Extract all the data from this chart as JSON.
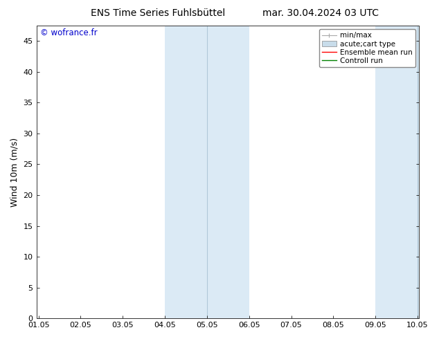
{
  "title": "ENS Time Series Fuhlsbüttel",
  "title_right": "mar. 30.04.2024 03 UTC",
  "ylabel": "Wind 10m (m/s)",
  "watermark": "© wofrance.fr",
  "watermark_color": "#0000cc",
  "background_color": "#ffffff",
  "plot_bg_color": "#ffffff",
  "shaded_bands": [
    {
      "xstart": 4.05,
      "xend": 5.05,
      "color": "#dbeaf5"
    },
    {
      "xstart": 5.05,
      "xend": 6.05,
      "color": "#dbeaf5"
    },
    {
      "xstart": 9.05,
      "xend": 10.05,
      "color": "#dbeaf5"
    },
    {
      "xstart": 10.05,
      "xend": 10.083,
      "color": "#dbeaf5"
    }
  ],
  "band_dividers": [
    5.05,
    10.05
  ],
  "x_ticks": [
    1.05,
    2.05,
    3.05,
    4.05,
    5.05,
    6.05,
    7.05,
    8.05,
    9.05,
    10.05
  ],
  "x_tick_labels": [
    "01.05",
    "02.05",
    "03.05",
    "04.05",
    "05.05",
    "06.05",
    "07.05",
    "08.05",
    "09.05",
    "10.05"
  ],
  "xlim": [
    1.0,
    10.083
  ],
  "ylim": [
    0,
    47.5
  ],
  "y_ticks": [
    0,
    5,
    10,
    15,
    20,
    25,
    30,
    35,
    40,
    45
  ],
  "legend_entries": [
    {
      "label": "min/max",
      "color": "#aaaaaa",
      "lw": 1.0
    },
    {
      "label": "acute;cart type",
      "color": "#c8dcea",
      "lw": 6
    },
    {
      "label": "Ensemble mean run",
      "color": "#ff0000",
      "lw": 1.0
    },
    {
      "label": "Controll run",
      "color": "#008000",
      "lw": 1.0
    }
  ],
  "tick_fontsize": 8,
  "title_fontsize": 10,
  "label_fontsize": 9,
  "legend_fontsize": 7.5,
  "shaded_color": "#dbeaf5",
  "divider_color": "#b0c8d8",
  "border_color": "#333333"
}
